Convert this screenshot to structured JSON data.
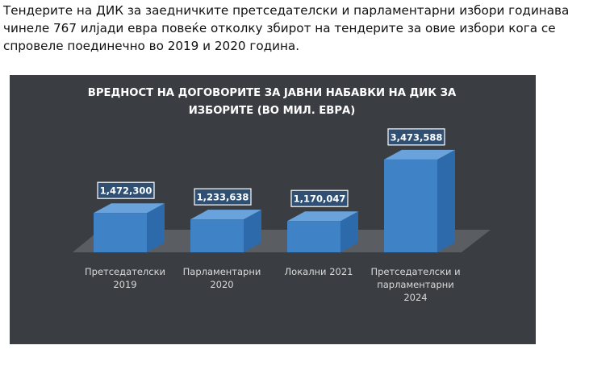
{
  "article": {
    "intro_text": "Тендерите на ДИК за заедничките претседателски и парламентарни избори годинава чинеле 767 илјади евра повеќе отколку збирот на тендерите за овие избори кога се спровеле поединечно во 2019 и 2020 година."
  },
  "colors": {
    "panel_bg": "#3a3e42",
    "floor": "#5a5e62",
    "bar_front": "#3f82c6",
    "bar_side": "#2c6aab",
    "bar_top": "#6aa3dc",
    "label_border": "#ffffff",
    "label_fill": "#2f4f73"
  },
  "chart_data": {
    "type": "bar",
    "title": "ВРЕДНОСТ НА ДОГОВОРИТЕ ЗА ЈАВНИ НАБАВКИ НА ДИК ЗА ИЗБОРИТЕ (ВО МИЛ. ЕВРА)",
    "categories": [
      [
        "Претседателски",
        "2019"
      ],
      [
        "Парламентарни",
        "2020"
      ],
      [
        "Локални 2021"
      ],
      [
        "Претседателски и",
        "парламентарни",
        "2024"
      ]
    ],
    "values": [
      1472300,
      1233638,
      1170047,
      3473588
    ],
    "value_labels": [
      "1,472,300",
      "1,233,638",
      "1,170,047",
      "3,473,588"
    ],
    "ylim": [
      0,
      3500000
    ],
    "grid": false,
    "legend": "none",
    "style": "3d-column"
  }
}
